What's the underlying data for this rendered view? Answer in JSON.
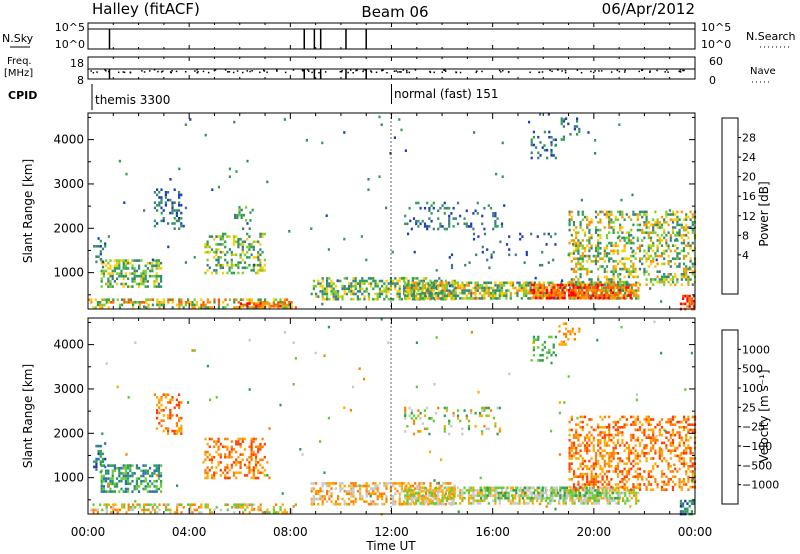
{
  "header": {
    "station": "Halley (fitACF)",
    "beam": "Beam 06",
    "date": "06/Apr/2012"
  },
  "aux_panels": {
    "nsky_label": "N.Sky",
    "nsky_ticks": [
      "10^5",
      "10^0"
    ],
    "nsearch_label": "N.Search",
    "nsearch_ticks": [
      "10^5",
      "10^0"
    ],
    "freq_label": "Freq.",
    "freq_unit": "[MHz]",
    "freq_ticks": [
      "18",
      "8"
    ],
    "nave_label": "Nave",
    "nave_ticks": [
      "60",
      "0"
    ],
    "cpid_label": "CPID",
    "cpid_segments": [
      {
        "label": "themis 3300",
        "start_hour": 0.0
      },
      {
        "label": "normal (fast) 151",
        "start_hour": 12.0
      }
    ],
    "nsky_drop_hours": [
      0.85,
      8.55,
      8.95,
      9.2,
      10.2,
      11.0
    ],
    "freq_drop_hours": [
      0.85,
      8.55,
      8.95,
      9.2,
      10.2,
      11.0
    ]
  },
  "chart_data": [
    {
      "type": "heatmap",
      "title": "",
      "xlabel": "Time UT",
      "ylabel": "Slant Range [km]",
      "x_ticks": [
        "00:00",
        "04:00",
        "08:00",
        "12:00",
        "16:00",
        "20:00",
        "00:00"
      ],
      "x_range_hours": [
        0,
        24
      ],
      "y_ticks": [
        1000,
        2000,
        3000,
        4000
      ],
      "y_range": [
        180,
        4600
      ],
      "colorbar": {
        "label": "Power [dB]",
        "ticks": [
          "28",
          "24",
          "20",
          "16",
          "12",
          "8",
          "4"
        ],
        "colors": [
          "#ff0000",
          "#ff5a00",
          "#ff9400",
          "#ffcc00",
          "#7fcc2a",
          "#2e9e52",
          "#3d7f7f",
          "#1e3fb4",
          "#0000ff"
        ]
      },
      "regions": [
        {
          "t0": 0.5,
          "t1": 2.9,
          "r0": 700,
          "r1": 1300,
          "dens": 0.55,
          "lvl": [
            3,
            6
          ]
        },
        {
          "t0": 0.2,
          "t1": 0.7,
          "r0": 1100,
          "r1": 1800,
          "dens": 0.3,
          "lvl": [
            5,
            7
          ]
        },
        {
          "t0": 0.0,
          "t1": 8.2,
          "r0": 200,
          "r1": 420,
          "dens": 0.5,
          "lvl": [
            1,
            5
          ]
        },
        {
          "t0": 6.0,
          "t1": 7.8,
          "r0": 220,
          "r1": 330,
          "dens": 0.6,
          "lvl": [
            0,
            2
          ]
        },
        {
          "t0": 2.6,
          "t1": 3.7,
          "r0": 2000,
          "r1": 2900,
          "dens": 0.3,
          "lvl": [
            5,
            7
          ]
        },
        {
          "t0": 4.6,
          "t1": 7.0,
          "r0": 1000,
          "r1": 1900,
          "dens": 0.4,
          "lvl": [
            3,
            6
          ]
        },
        {
          "t0": 5.6,
          "t1": 6.5,
          "r0": 2200,
          "r1": 2500,
          "dens": 0.25,
          "lvl": [
            4,
            6
          ]
        },
        {
          "t0": 8.8,
          "t1": 14.5,
          "r0": 400,
          "r1": 900,
          "dens": 0.55,
          "lvl": [
            3,
            6
          ]
        },
        {
          "t0": 12.5,
          "t1": 21.8,
          "r0": 400,
          "r1": 800,
          "dens": 0.65,
          "lvl": [
            2,
            6
          ]
        },
        {
          "t0": 17.5,
          "t1": 21.5,
          "r0": 450,
          "r1": 750,
          "dens": 0.75,
          "lvl": [
            0,
            2
          ]
        },
        {
          "t0": 19.0,
          "t1": 24.0,
          "r0": 700,
          "r1": 2400,
          "dens": 0.4,
          "lvl": [
            2,
            6
          ]
        },
        {
          "t0": 12.5,
          "t1": 16.5,
          "r0": 2000,
          "r1": 2600,
          "dens": 0.18,
          "lvl": [
            5,
            7
          ]
        },
        {
          "t0": 14.0,
          "t1": 18.5,
          "r0": 1100,
          "r1": 1900,
          "dens": 0.06,
          "lvl": [
            6,
            7
          ]
        },
        {
          "t0": 17.5,
          "t1": 18.5,
          "r0": 3600,
          "r1": 4200,
          "dens": 0.2,
          "lvl": [
            5,
            7
          ]
        },
        {
          "t0": 18.6,
          "t1": 19.4,
          "r0": 4000,
          "r1": 4500,
          "dens": 0.2,
          "lvl": [
            5,
            7
          ]
        },
        {
          "t0": 23.4,
          "t1": 24.0,
          "r0": 200,
          "r1": 500,
          "dens": 0.7,
          "lvl": [
            0,
            2
          ]
        },
        {
          "t0": 0.0,
          "t1": 24.0,
          "r0": 180,
          "r1": 4600,
          "dens": 0.004,
          "lvl": [
            5,
            7
          ]
        }
      ]
    },
    {
      "type": "heatmap",
      "title": "",
      "xlabel": "Time UT",
      "ylabel": "Slant Range [km]",
      "x_ticks": [
        "00:00",
        "04:00",
        "08:00",
        "12:00",
        "16:00",
        "20:00",
        "00:00"
      ],
      "x_range_hours": [
        0,
        24
      ],
      "y_ticks": [
        1000,
        2000,
        3000,
        4000
      ],
      "y_range": [
        180,
        4600
      ],
      "colorbar": {
        "label": "Velocity [m s⁻¹]",
        "ticks": [
          "1000",
          "500",
          "100",
          "25",
          "−25",
          "−100",
          "−500",
          "−1000"
        ],
        "colors": [
          "#2233aa",
          "#2e6fb0",
          "#2e9e52",
          "#66cc33",
          "#c8c8c8",
          "#ffaa00",
          "#ff8000",
          "#ff4000",
          "#ff0000"
        ]
      },
      "regions": [
        {
          "t0": 0.5,
          "t1": 2.9,
          "r0": 700,
          "r1": 1300,
          "dens": 0.55,
          "lvl": [
            1,
            3
          ]
        },
        {
          "t0": 0.2,
          "t1": 0.7,
          "r0": 1100,
          "r1": 1800,
          "dens": 0.3,
          "lvl": [
            0,
            2
          ]
        },
        {
          "t0": 0.0,
          "t1": 8.2,
          "r0": 200,
          "r1": 420,
          "dens": 0.45,
          "lvl": [
            3,
            6
          ]
        },
        {
          "t0": 2.6,
          "t1": 3.7,
          "r0": 2000,
          "r1": 2900,
          "dens": 0.3,
          "lvl": [
            5,
            7
          ]
        },
        {
          "t0": 4.6,
          "t1": 7.0,
          "r0": 1000,
          "r1": 1900,
          "dens": 0.4,
          "lvl": [
            5,
            7
          ]
        },
        {
          "t0": 8.8,
          "t1": 14.5,
          "r0": 400,
          "r1": 900,
          "dens": 0.5,
          "lvl": [
            4,
            6
          ]
        },
        {
          "t0": 12.5,
          "t1": 21.8,
          "r0": 400,
          "r1": 800,
          "dens": 0.6,
          "lvl": [
            3,
            5
          ]
        },
        {
          "t0": 15.5,
          "t1": 21.0,
          "r0": 550,
          "r1": 800,
          "dens": 0.5,
          "lvl": [
            2,
            4
          ]
        },
        {
          "t0": 19.0,
          "t1": 24.0,
          "r0": 700,
          "r1": 2400,
          "dens": 0.4,
          "lvl": [
            5,
            7
          ]
        },
        {
          "t0": 12.5,
          "t1": 16.5,
          "r0": 2000,
          "r1": 2600,
          "dens": 0.15,
          "lvl": [
            2,
            6
          ]
        },
        {
          "t0": 17.5,
          "t1": 18.5,
          "r0": 3600,
          "r1": 4200,
          "dens": 0.2,
          "lvl": [
            2,
            3
          ]
        },
        {
          "t0": 18.6,
          "t1": 19.4,
          "r0": 4000,
          "r1": 4500,
          "dens": 0.2,
          "lvl": [
            5,
            6
          ]
        },
        {
          "t0": 23.4,
          "t1": 24.0,
          "r0": 200,
          "r1": 500,
          "dens": 0.6,
          "lvl": [
            0,
            2
          ]
        },
        {
          "t0": 0.0,
          "t1": 24.0,
          "r0": 180,
          "r1": 4600,
          "dens": 0.004,
          "lvl": [
            2,
            6
          ]
        }
      ]
    }
  ]
}
